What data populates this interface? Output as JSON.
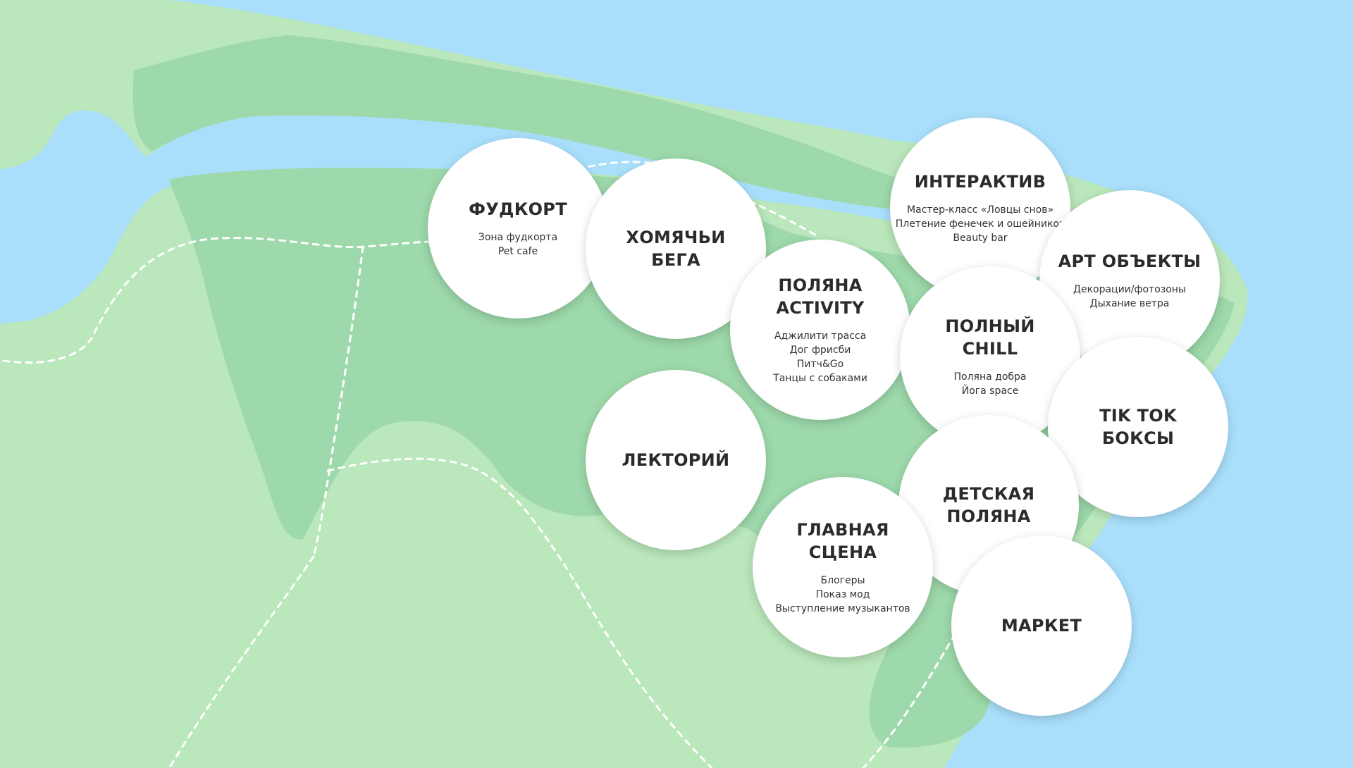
{
  "colors": {
    "water": "#a9dffb",
    "land_light": "#bae7bb",
    "land_dark": "#9dd9aa",
    "path": "#ffffff",
    "circle": "#ffffff",
    "title_text": "#2b2b2b",
    "item_text": "#333333"
  },
  "zones": [
    {
      "id": "foodcourt",
      "title": "ФУДКОРТ",
      "items": [
        "Зона фудкорта",
        "Pet cafe"
      ]
    },
    {
      "id": "hamster",
      "title": "ХОМЯЧЬИ\nБЕГА",
      "items": []
    },
    {
      "id": "activity",
      "title": "ПОЛЯНА\nACTIVITY",
      "items": [
        "Аджилити трасса",
        "Дог фрисби",
        "Питч&Go",
        "Танцы с собаками"
      ]
    },
    {
      "id": "interactive",
      "title": "ИНТЕРАКТИВ",
      "items": [
        "Мастер-класс «Ловцы снов»",
        "Плетение фенечек и ошейников",
        "Beauty bar"
      ]
    },
    {
      "id": "art",
      "title": "АРТ ОБЪЕКТЫ",
      "items": [
        "Декорации/фотозоны",
        "Дыхание ветра"
      ]
    },
    {
      "id": "chill",
      "title": "ПОЛНЫЙ\nCHILL",
      "items": [
        "Поляна добра",
        "Йога space"
      ]
    },
    {
      "id": "tiktok",
      "title": "TIK TOK\nБОКСЫ",
      "items": []
    },
    {
      "id": "lecture",
      "title": "ЛЕКТОРИЙ",
      "items": []
    },
    {
      "id": "kids",
      "title": "ДЕТСКАЯ\nПОЛЯНА",
      "items": []
    },
    {
      "id": "stage",
      "title": "ГЛАВНАЯ\nСЦЕНА",
      "items": [
        "Блогеры",
        "Показ мод",
        "Выступление музыкантов"
      ]
    },
    {
      "id": "market",
      "title": "МАРКЕТ",
      "items": []
    }
  ]
}
